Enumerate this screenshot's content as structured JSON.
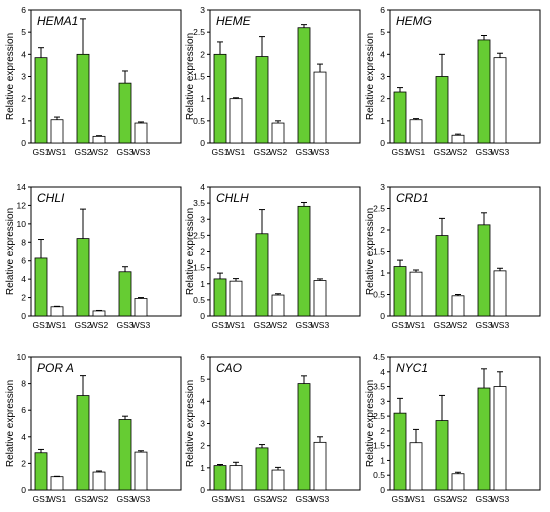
{
  "colors": {
    "gs": "#66cc33",
    "ws": "#ffffff",
    "axis": "#000000"
  },
  "chart_data": [
    {
      "type": "bar",
      "title": "HEMA1",
      "ylabel": "Relative expression",
      "ylim": [
        0,
        6
      ],
      "yticks": [
        "0",
        "1",
        "2",
        "3",
        "4",
        "5",
        "6"
      ],
      "categories": [
        "GS1",
        "WS1",
        "GS2",
        "WS2",
        "GS3",
        "WS3"
      ],
      "values": [
        3.85,
        1.05,
        4.0,
        0.3,
        2.7,
        0.9
      ],
      "errors": [
        0.45,
        0.12,
        1.6,
        0.03,
        0.55,
        0.05
      ]
    },
    {
      "type": "bar",
      "title": "HEME",
      "ylabel": "Relative expression",
      "ylim": [
        0,
        3
      ],
      "yticks": [
        "0",
        "0.5",
        "1",
        "1.5",
        "2",
        "2.5",
        "3"
      ],
      "categories": [
        "GS1",
        "WS1",
        "GS2",
        "WS2",
        "GS3",
        "WS3"
      ],
      "values": [
        2.0,
        1.0,
        1.95,
        0.45,
        2.6,
        1.6
      ],
      "errors": [
        0.28,
        0.02,
        0.45,
        0.05,
        0.07,
        0.18
      ]
    },
    {
      "type": "bar",
      "title": "HEMG",
      "ylabel": "Relative expression",
      "ylim": [
        0,
        6
      ],
      "yticks": [
        "0",
        "1",
        "2",
        "3",
        "4",
        "5",
        "6"
      ],
      "categories": [
        "GS1",
        "WS1",
        "GS2",
        "WS2",
        "GS3",
        "WS3"
      ],
      "values": [
        2.3,
        1.05,
        3.0,
        0.35,
        4.65,
        3.85
      ],
      "errors": [
        0.2,
        0.05,
        1.0,
        0.05,
        0.2,
        0.2
      ]
    },
    {
      "type": "bar",
      "title": "CHLI",
      "ylabel": "Relative expression",
      "ylim": [
        0,
        14
      ],
      "yticks": [
        "0",
        "2",
        "4",
        "6",
        "8",
        "10",
        "12",
        "14"
      ],
      "categories": [
        "GS1",
        "WS1",
        "GS2",
        "WS2",
        "GS3",
        "WS3"
      ],
      "values": [
        6.3,
        1.0,
        8.4,
        0.55,
        4.8,
        1.9
      ],
      "errors": [
        2.0,
        0.05,
        3.2,
        0.05,
        0.55,
        0.1
      ]
    },
    {
      "type": "bar",
      "title": "CHLH",
      "ylabel": "Relative expression",
      "ylim": [
        0,
        4
      ],
      "yticks": [
        "0",
        "0.5",
        "1",
        "1.5",
        "2",
        "2.5",
        "3",
        "3.5",
        "4"
      ],
      "categories": [
        "GS1",
        "WS1",
        "GS2",
        "WS2",
        "GS3",
        "WS3"
      ],
      "values": [
        1.15,
        1.08,
        2.55,
        0.65,
        3.4,
        1.1
      ],
      "errors": [
        0.18,
        0.08,
        0.75,
        0.04,
        0.12,
        0.05
      ]
    },
    {
      "type": "bar",
      "title": "CRD1",
      "ylabel": "Relative expression",
      "ylim": [
        0,
        3
      ],
      "yticks": [
        "0",
        "0.5",
        "1",
        "1.5",
        "2",
        "2.5",
        "3"
      ],
      "categories": [
        "GS1",
        "WS1",
        "GS2",
        "WS2",
        "GS3",
        "WS3"
      ],
      "values": [
        1.15,
        1.02,
        1.87,
        0.47,
        2.12,
        1.05
      ],
      "errors": [
        0.15,
        0.05,
        0.4,
        0.03,
        0.28,
        0.06
      ]
    },
    {
      "type": "bar",
      "title": "POR A",
      "ylabel": "Relative expression",
      "ylim": [
        0,
        10
      ],
      "yticks": [
        "0",
        "2",
        "4",
        "6",
        "8",
        "10"
      ],
      "categories": [
        "GS1",
        "WS1",
        "GS2",
        "WS2",
        "GS3",
        "WS3"
      ],
      "values": [
        2.8,
        1.0,
        7.1,
        1.35,
        5.3,
        2.85
      ],
      "errors": [
        0.25,
        0.03,
        1.5,
        0.08,
        0.25,
        0.1
      ]
    },
    {
      "type": "bar",
      "title": "CAO",
      "ylabel": "Relative expression",
      "ylim": [
        0,
        6
      ],
      "yticks": [
        "0",
        "1",
        "2",
        "3",
        "4",
        "5",
        "6"
      ],
      "categories": [
        "GS1",
        "WS1",
        "GS2",
        "WS2",
        "GS3",
        "WS3"
      ],
      "values": [
        1.1,
        1.1,
        1.9,
        0.9,
        4.8,
        2.15
      ],
      "errors": [
        0.05,
        0.15,
        0.15,
        0.12,
        0.35,
        0.25
      ]
    },
    {
      "type": "bar",
      "title": "NYC1",
      "ylabel": "Relative expression",
      "ylim": [
        0,
        4.5
      ],
      "yticks": [
        "0",
        "0.5",
        "1",
        "1.5",
        "2",
        "2.5",
        "3",
        "3.5",
        "4",
        "4.5"
      ],
      "categories": [
        "GS1",
        "WS1",
        "GS2",
        "WS2",
        "GS3",
        "WS3"
      ],
      "values": [
        2.6,
        1.6,
        2.35,
        0.55,
        3.45,
        3.5
      ],
      "errors": [
        0.5,
        0.45,
        0.85,
        0.05,
        0.65,
        0.5
      ]
    }
  ]
}
